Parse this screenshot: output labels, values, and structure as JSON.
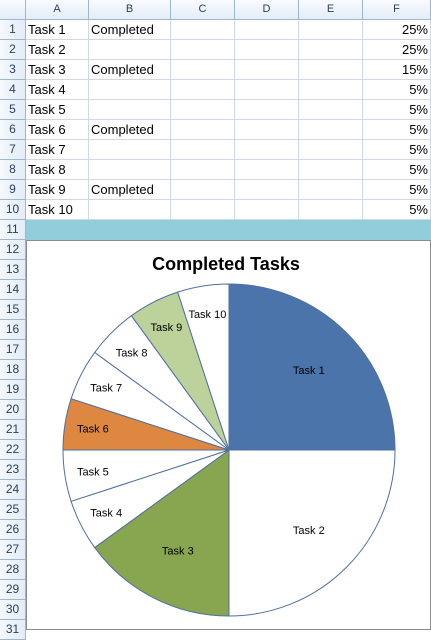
{
  "columns": [
    "A",
    "B",
    "C",
    "D",
    "E",
    "F"
  ],
  "rows": [
    "1",
    "2",
    "3",
    "4",
    "5",
    "6",
    "7",
    "8",
    "9",
    "10",
    "11",
    "12",
    "13",
    "14",
    "15",
    "16",
    "17",
    "18",
    "19",
    "20",
    "21",
    "22",
    "23",
    "24",
    "25",
    "26",
    "27",
    "28",
    "29",
    "30",
    "31"
  ],
  "table": [
    {
      "task": "Task 1",
      "status": "Completed",
      "pct": "25%"
    },
    {
      "task": "Task 2",
      "status": "",
      "pct": "25%"
    },
    {
      "task": "Task 3",
      "status": "Completed",
      "pct": "15%"
    },
    {
      "task": "Task 4",
      "status": "",
      "pct": "5%"
    },
    {
      "task": "Task 5",
      "status": "",
      "pct": "5%"
    },
    {
      "task": "Task 6",
      "status": "Completed",
      "pct": "5%"
    },
    {
      "task": "Task 7",
      "status": "",
      "pct": "5%"
    },
    {
      "task": "Task 8",
      "status": "",
      "pct": "5%"
    },
    {
      "task": "Task 9",
      "status": "Completed",
      "pct": "5%"
    },
    {
      "task": "Task 10",
      "status": "",
      "pct": "5%"
    }
  ],
  "chart_data": {
    "type": "pie",
    "title": "Completed Tasks",
    "categories": [
      "Task 1",
      "Task 2",
      "Task 3",
      "Task 4",
      "Task 5",
      "Task 6",
      "Task 7",
      "Task 8",
      "Task 9",
      "Task 10"
    ],
    "values": [
      25,
      25,
      15,
      5,
      5,
      5,
      5,
      5,
      5,
      5
    ],
    "colors": [
      "#4a74aa",
      "#ffffff",
      "#88a550",
      "#ffffff",
      "#ffffff",
      "#dd8740",
      "#ffffff",
      "#ffffff",
      "#bdd29a",
      "#ffffff"
    ],
    "edge_color": "#4f6fa0"
  }
}
